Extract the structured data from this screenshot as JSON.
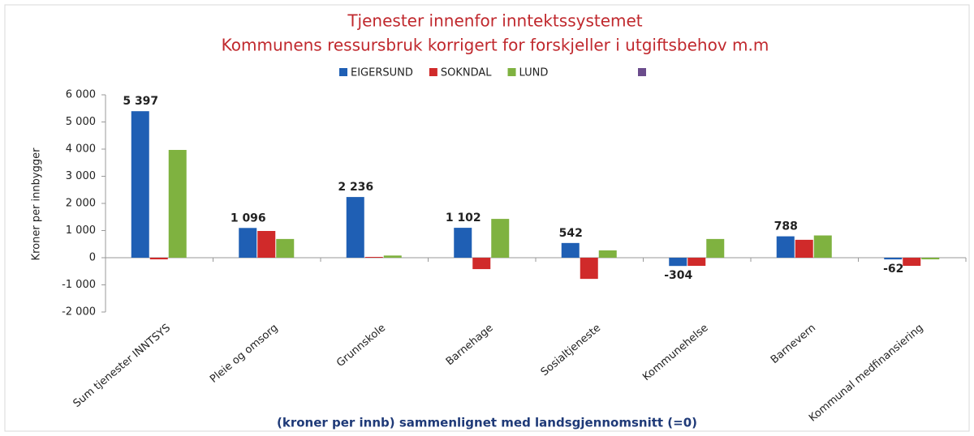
{
  "chart_data": {
    "type": "bar",
    "title": "Tjenester innenfor inntektssystemet",
    "subtitle": "Kommunens ressursbruk korrigert for  forskjeller i utgiftsbehov m.m",
    "y_label": "Kroner per innbygger",
    "x_label": "(kroner per innb) sammenlignet med landsgjennomsnitt (=0)",
    "categories": [
      "Sum tjenester INNTSYS",
      "Pleie og omsorg",
      "Grunnskole",
      "Barnehage",
      "Sosialtjeneste",
      "Kommunehelse",
      "Barnevern",
      "Kommunal medfinansiering"
    ],
    "series": [
      {
        "name": "EIGERSUND",
        "color": "#1f5fb4",
        "values": [
          5397,
          1096,
          2236,
          1102,
          542,
          -304,
          788,
          -62
        ],
        "value_labels": [
          "5 397",
          "1 096",
          "2 236",
          "1 102",
          "542",
          "-304",
          "788",
          "-62"
        ]
      },
      {
        "name": "SOKNDAL",
        "color": "#d02a2a",
        "values": [
          -60,
          985,
          30,
          -420,
          -780,
          -300,
          660,
          -300
        ]
      },
      {
        "name": "LUND",
        "color": "#7fb240",
        "values": [
          3970,
          690,
          80,
          1430,
          270,
          690,
          820,
          -60
        ]
      }
    ],
    "ylim": [
      -2000,
      6000
    ],
    "yticks": [
      {
        "value": -2000,
        "label": "-2 000"
      },
      {
        "value": -1000,
        "label": "-1 000"
      },
      0,
      {
        "value": 1000,
        "label": "1 000"
      },
      {
        "value": 2000,
        "label": "2 000"
      },
      {
        "value": 3000,
        "label": "3 000"
      },
      {
        "value": 4000,
        "label": "4 000"
      },
      {
        "value": 5000,
        "label": "5 000"
      },
      {
        "value": 6000,
        "label": "6 000"
      }
    ],
    "grid": false
  }
}
